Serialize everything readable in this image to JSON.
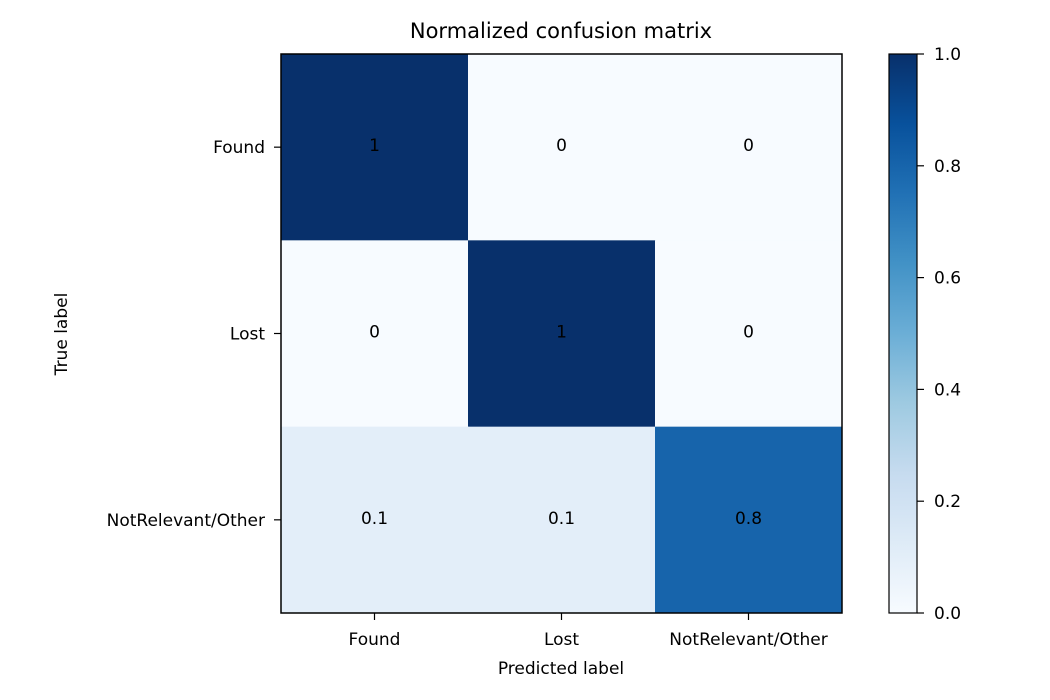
{
  "chart_data": {
    "type": "heatmap",
    "title": "Normalized confusion matrix",
    "xlabel": "Predicted label",
    "ylabel": "True label",
    "x_categories": [
      "Found",
      "Lost",
      "NotRelevant/Other"
    ],
    "y_categories": [
      "Found",
      "Lost",
      "NotRelevant/Other"
    ],
    "values": [
      [
        1.0,
        0.0,
        0.0
      ],
      [
        0.0,
        1.0,
        0.0
      ],
      [
        0.1,
        0.1,
        0.8
      ]
    ],
    "cell_labels": [
      [
        "1",
        "0",
        "0"
      ],
      [
        "0",
        "1",
        "0"
      ],
      [
        "0.1",
        "0.1",
        "0.8"
      ]
    ],
    "colormap": "Blues",
    "colorbar": {
      "range": [
        0.0,
        1.0
      ],
      "ticks": [
        0.0,
        0.2,
        0.4,
        0.6,
        0.8,
        1.0
      ],
      "tick_labels": [
        "0.0",
        "0.2",
        "0.4",
        "0.6",
        "0.8",
        "1.0"
      ]
    },
    "colors": {
      "low": "#f7fbff",
      "high": "#08306b",
      "text_on_dark": "#f7fbff",
      "text_on_light": "#08306b"
    }
  }
}
